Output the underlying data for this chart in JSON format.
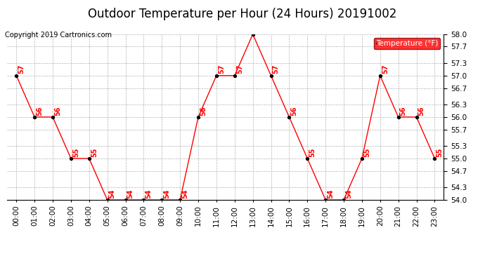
{
  "title": "Outdoor Temperature per Hour (24 Hours) 20191002",
  "copyright": "Copyright 2019 Cartronics.com",
  "legend_label": "Temperature (°F)",
  "hours": [
    "00:00",
    "01:00",
    "02:00",
    "03:00",
    "04:00",
    "05:00",
    "06:00",
    "07:00",
    "08:00",
    "09:00",
    "10:00",
    "11:00",
    "12:00",
    "13:00",
    "14:00",
    "15:00",
    "16:00",
    "17:00",
    "18:00",
    "19:00",
    "20:00",
    "21:00",
    "22:00",
    "23:00"
  ],
  "temps": [
    57,
    56,
    56,
    55,
    55,
    54,
    54,
    54,
    54,
    54,
    56,
    57,
    57,
    58,
    57,
    56,
    55,
    54,
    54,
    55,
    57,
    56,
    56,
    55
  ],
  "line_color": "#ff0000",
  "marker_color": "#000000",
  "label_color": "#ff0000",
  "background_color": "#ffffff",
  "grid_color": "#aaaaaa",
  "title_fontsize": 12,
  "tick_fontsize": 7.5,
  "label_fontsize": 7,
  "copyright_fontsize": 7,
  "ylim_min": 54.0,
  "ylim_max": 58.0,
  "yticks": [
    54.0,
    54.3,
    54.7,
    55.0,
    55.3,
    55.7,
    56.0,
    56.3,
    56.7,
    57.0,
    57.3,
    57.7,
    58.0
  ]
}
